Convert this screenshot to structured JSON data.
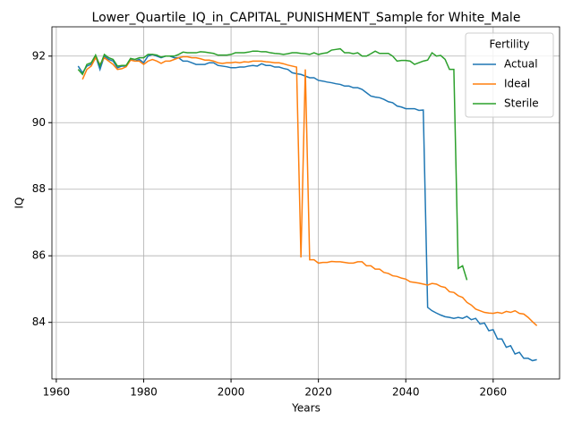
{
  "chart_data": {
    "type": "line",
    "title": "Lower_Quartile_IQ_in_CAPITAL_PUNISHMENT_Sample for White_Male",
    "x_label": "Years",
    "y_label": "IQ",
    "legend_title": "Fertility",
    "legend_loc": "upper right",
    "grid": true,
    "xlim": [
      1959.0,
      2075.2
    ],
    "ylim": [
      82.3,
      92.88
    ],
    "xticks": [
      1960,
      1980,
      2000,
      2020,
      2040,
      2060
    ],
    "yticks": [
      84,
      86,
      88,
      90,
      92
    ],
    "x": [
      1965,
      1966,
      1967,
      1968,
      1969,
      1970,
      1971,
      1972,
      1973,
      1974,
      1975,
      1976,
      1977,
      1978,
      1979,
      1980,
      1981,
      1982,
      1983,
      1984,
      1985,
      1986,
      1987,
      1988,
      1989,
      1990,
      1991,
      1992,
      1993,
      1994,
      1995,
      1996,
      1997,
      1998,
      1999,
      2000,
      2001,
      2002,
      2003,
      2004,
      2005,
      2006,
      2007,
      2008,
      2009,
      2010,
      2011,
      2012,
      2013,
      2014,
      2015,
      2016,
      2017,
      2018,
      2019,
      2020,
      2021,
      2022,
      2023,
      2024,
      2025,
      2026,
      2027,
      2028,
      2029,
      2030,
      2031,
      2032,
      2033,
      2034,
      2035,
      2036,
      2037,
      2038,
      2039,
      2040,
      2041,
      2042,
      2043,
      2044,
      2045,
      2046,
      2047,
      2048,
      2049,
      2050,
      2051,
      2052,
      2053,
      2054,
      2055,
      2056,
      2057,
      2058,
      2059,
      2060,
      2061,
      2062,
      2063,
      2064,
      2065,
      2066,
      2067,
      2068,
      2069,
      2070
    ],
    "series": [
      {
        "name": "Actual",
        "color": "#1f77b4",
        "values": [
          91.7,
          91.5,
          91.7,
          91.75,
          92.0,
          91.6,
          92.0,
          91.9,
          91.85,
          91.65,
          91.7,
          91.7,
          91.9,
          91.85,
          91.9,
          91.8,
          92.0,
          92.05,
          92.0,
          91.95,
          92.0,
          92.0,
          91.95,
          91.95,
          91.85,
          91.85,
          91.8,
          91.75,
          91.75,
          91.75,
          91.8,
          91.8,
          91.72,
          91.7,
          91.68,
          91.65,
          91.65,
          91.67,
          91.67,
          91.7,
          91.72,
          91.7,
          91.77,
          91.72,
          91.72,
          91.67,
          91.67,
          91.63,
          91.6,
          91.5,
          91.47,
          91.45,
          91.4,
          91.35,
          91.35,
          91.27,
          91.25,
          91.22,
          91.2,
          91.17,
          91.15,
          91.1,
          91.1,
          91.05,
          91.05,
          91.0,
          90.9,
          90.8,
          90.77,
          90.75,
          90.7,
          90.63,
          90.6,
          90.5,
          90.47,
          90.42,
          90.42,
          90.42,
          90.37,
          90.38,
          84.45,
          84.35,
          84.28,
          84.22,
          84.17,
          84.15,
          84.12,
          84.15,
          84.12,
          84.18,
          84.08,
          84.12,
          83.95,
          83.98,
          83.75,
          83.78,
          83.5,
          83.5,
          83.25,
          83.3,
          83.05,
          83.1,
          82.92,
          82.92,
          82.85,
          82.88
        ]
      },
      {
        "name": "Ideal",
        "color": "#ff7f0e",
        "values": [
          null,
          91.3,
          91.6,
          91.7,
          91.95,
          91.75,
          91.95,
          91.85,
          91.75,
          91.6,
          91.62,
          91.68,
          91.88,
          91.85,
          91.85,
          91.75,
          91.85,
          91.9,
          91.85,
          91.78,
          91.85,
          91.85,
          91.9,
          91.95,
          91.98,
          91.98,
          91.95,
          91.95,
          91.92,
          91.88,
          91.88,
          91.85,
          91.8,
          91.78,
          91.8,
          91.8,
          91.82,
          91.8,
          91.83,
          91.82,
          91.85,
          91.85,
          91.85,
          91.83,
          91.82,
          91.8,
          91.8,
          91.77,
          91.73,
          91.7,
          91.67,
          85.95,
          91.6,
          85.88,
          85.88,
          85.78,
          85.8,
          85.8,
          85.83,
          85.82,
          85.82,
          85.8,
          85.78,
          85.78,
          85.82,
          85.82,
          85.7,
          85.7,
          85.6,
          85.6,
          85.5,
          85.47,
          85.4,
          85.38,
          85.33,
          85.3,
          85.22,
          85.2,
          85.18,
          85.15,
          85.12,
          85.17,
          85.15,
          85.08,
          85.05,
          84.92,
          84.9,
          84.8,
          84.75,
          84.6,
          84.52,
          84.4,
          84.35,
          84.3,
          84.28,
          84.27,
          84.3,
          84.27,
          84.33,
          84.3,
          84.35,
          84.27,
          84.25,
          84.15,
          84.02,
          83.9
        ]
      },
      {
        "name": "Sterile",
        "color": "#2ca02c",
        "values": [
          91.6,
          91.45,
          91.75,
          91.8,
          92.03,
          91.7,
          92.05,
          91.95,
          91.9,
          91.7,
          91.72,
          91.72,
          91.93,
          91.9,
          91.95,
          91.95,
          92.05,
          92.05,
          92.03,
          91.97,
          92.0,
          92.0,
          92.0,
          92.05,
          92.12,
          92.1,
          92.1,
          92.1,
          92.13,
          92.12,
          92.1,
          92.08,
          92.03,
          92.03,
          92.03,
          92.05,
          92.1,
          92.1,
          92.1,
          92.12,
          92.15,
          92.15,
          92.13,
          92.13,
          92.1,
          92.08,
          92.07,
          92.05,
          92.07,
          92.1,
          92.1,
          92.08,
          92.07,
          92.05,
          92.1,
          92.05,
          92.08,
          92.1,
          92.18,
          92.2,
          92.22,
          92.1,
          92.1,
          92.07,
          92.1,
          92.0,
          92.0,
          92.07,
          92.15,
          92.08,
          92.08,
          92.08,
          92.0,
          91.85,
          91.87,
          91.87,
          91.85,
          91.75,
          91.8,
          91.85,
          91.88,
          92.1,
          92.0,
          92.02,
          91.9,
          91.6,
          91.6,
          85.62,
          85.7,
          85.27,
          null,
          null,
          null,
          null,
          null,
          null,
          null,
          null,
          null,
          null,
          null,
          null,
          null,
          null,
          null,
          null
        ]
      }
    ]
  }
}
